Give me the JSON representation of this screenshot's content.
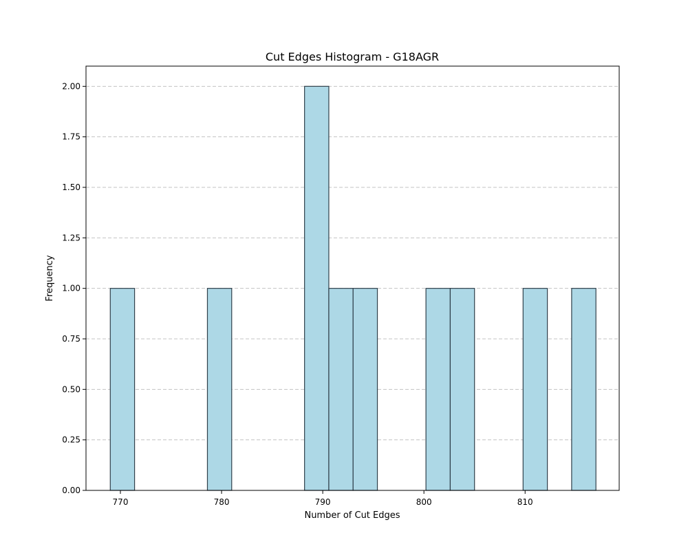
{
  "chart_data": {
    "type": "bar",
    "title": "Cut Edges Histogram - G18AGR",
    "xlabel": "Number of Cut Edges",
    "ylabel": "Frequency",
    "xlim": [
      766.6,
      819.3
    ],
    "ylim": [
      0,
      2.1
    ],
    "xticks": [
      770,
      780,
      790,
      800,
      810
    ],
    "yticks": [
      0.0,
      0.25,
      0.5,
      0.75,
      1.0,
      1.25,
      1.5,
      1.75,
      2.0
    ],
    "grid": "y-dashed",
    "bar_color": "#add8e6",
    "edge_color": "#2f3f4a",
    "bins": [
      {
        "start": 769.0,
        "end": 771.4,
        "count": 1
      },
      {
        "start": 778.6,
        "end": 781.0,
        "count": 1
      },
      {
        "start": 788.2,
        "end": 790.6,
        "count": 2
      },
      {
        "start": 790.6,
        "end": 793.0,
        "count": 1
      },
      {
        "start": 793.0,
        "end": 795.4,
        "count": 1
      },
      {
        "start": 800.2,
        "end": 802.6,
        "count": 1
      },
      {
        "start": 802.6,
        "end": 805.0,
        "count": 1
      },
      {
        "start": 809.8,
        "end": 812.2,
        "count": 1
      },
      {
        "start": 814.6,
        "end": 817.0,
        "count": 1
      }
    ]
  }
}
